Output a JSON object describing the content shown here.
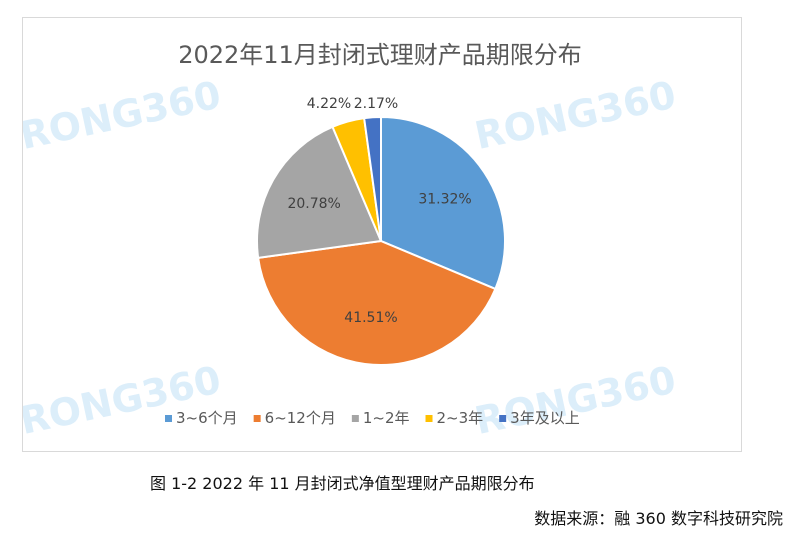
{
  "chart_data": {
    "type": "pie",
    "title": "2022年11月封闭式理财产品期限分布",
    "categories": [
      "3~6个月",
      "6~12个月",
      "1~2年",
      "2~3年",
      "3年及以上"
    ],
    "values": [
      31.32,
      41.51,
      20.78,
      4.22,
      2.17
    ],
    "value_labels": [
      "31.32%",
      "41.51%",
      "20.78%",
      "4.22%",
      "2.17%"
    ],
    "colors": [
      "#5b9bd5",
      "#ed7d31",
      "#a5a5a5",
      "#ffc000",
      "#4472c4"
    ],
    "legend_position": "bottom",
    "watermark": "RONG360"
  },
  "caption": "图 1-2 2022 年 11 月封闭式净值型理财产品期限分布",
  "source": "数据来源：融 360 数字科技研究院"
}
